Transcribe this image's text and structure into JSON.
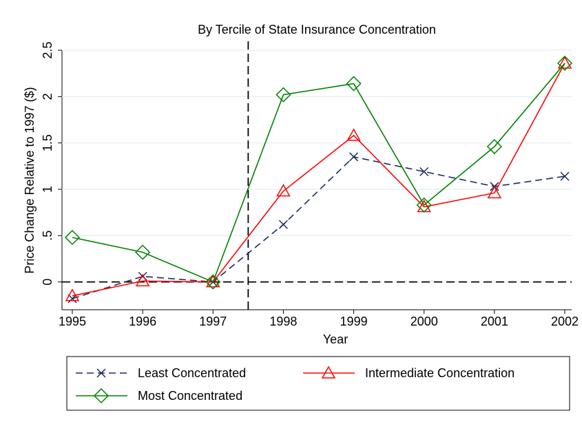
{
  "chart_data": {
    "type": "line",
    "subtitle": "By Tercile of State Insurance Concentration",
    "x_label": "Year",
    "y_label": "Price Change Relative to 1997 ($)",
    "x": [
      1995,
      1996,
      1997,
      1998,
      1999,
      2000,
      2001,
      2002
    ],
    "series": [
      {
        "name": "Least Concentrated",
        "color": "#1a2a5a",
        "marker": "x",
        "dash": true,
        "values": [
          -0.18,
          0.06,
          0,
          0.62,
          1.35,
          1.19,
          1.03,
          1.14
        ]
      },
      {
        "name": "Intermediate Concentration",
        "color": "#ff0000",
        "marker": "triangle",
        "dash": false,
        "values": [
          -0.15,
          0.01,
          0,
          0.98,
          1.58,
          0.81,
          0.96,
          2.36
        ]
      },
      {
        "name": "Most Concentrated",
        "color": "#008000",
        "marker": "diamond",
        "dash": false,
        "values": [
          0.48,
          0.32,
          0,
          2.02,
          2.14,
          0.83,
          1.46,
          2.36
        ]
      }
    ],
    "xlim": [
      1995,
      2002
    ],
    "xticks": [
      1995,
      1996,
      1997,
      1998,
      1999,
      2000,
      2001,
      2002
    ],
    "ylim": [
      -0.3,
      2.5
    ],
    "yticks": [
      0,
      {
        "value": 0.5,
        "label": ".5"
      },
      1,
      1.5,
      2,
      2.5
    ],
    "grid": true,
    "hlines": [
      0
    ],
    "vlines": [
      1997.5
    ],
    "legend": "bottom"
  }
}
